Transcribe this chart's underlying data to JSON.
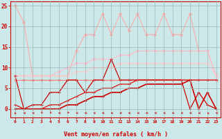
{
  "xlabel": "Vent moyen/en rafales ( km/h )",
  "x": [
    0,
    1,
    2,
    3,
    4,
    5,
    6,
    7,
    8,
    9,
    10,
    11,
    12,
    13,
    14,
    15,
    16,
    17,
    18,
    19,
    20,
    21,
    22,
    23
  ],
  "series": [
    {
      "name": "lightest_spiky",
      "color": "#ffaaaa",
      "lw": 0.8,
      "marker": "D",
      "ms": 2.0,
      "y": [
        25,
        21,
        8,
        8,
        8,
        8,
        8,
        14,
        18,
        18,
        23,
        18,
        23,
        19,
        23,
        18,
        18,
        23,
        18,
        18,
        23,
        14,
        14,
        8
      ]
    },
    {
      "name": "light_upper_slope",
      "color": "#ffbbcc",
      "lw": 0.8,
      "marker": "D",
      "ms": 2.0,
      "y": [
        8,
        8,
        8,
        8,
        8,
        9,
        10,
        11,
        11,
        12,
        12,
        12,
        13,
        13,
        14,
        14,
        14,
        14,
        14,
        14,
        14,
        14,
        14,
        8
      ]
    },
    {
      "name": "light_medium_slope",
      "color": "#ffcccc",
      "lw": 0.8,
      "marker": "D",
      "ms": 2.0,
      "y": [
        8,
        8,
        8,
        8,
        8,
        8,
        8,
        9,
        9,
        10,
        10,
        10,
        11,
        11,
        11,
        11,
        11,
        11,
        11,
        11,
        11,
        11,
        11,
        8
      ]
    },
    {
      "name": "medium_flat",
      "color": "#ff7777",
      "lw": 0.8,
      "marker": "s",
      "ms": 1.8,
      "y": [
        7,
        7,
        7,
        7,
        7,
        7,
        7,
        7,
        7,
        7,
        7,
        7,
        7,
        7,
        7,
        7,
        7,
        7,
        7,
        7,
        7,
        7,
        7,
        7
      ]
    },
    {
      "name": "dark_spiky",
      "color": "#cc0000",
      "lw": 0.9,
      "marker": "+",
      "ms": 3.5,
      "y": [
        8,
        0,
        1,
        1,
        4,
        4,
        7,
        7,
        4,
        7,
        7,
        12,
        7,
        7,
        7,
        7,
        7,
        7,
        7,
        7,
        0,
        4,
        1,
        0
      ]
    },
    {
      "name": "dark_slope1",
      "color": "#dd1111",
      "lw": 0.9,
      "marker": "+",
      "ms": 3.0,
      "y": [
        1,
        0,
        0,
        0,
        1,
        1,
        2,
        3,
        4,
        4,
        5,
        5,
        6,
        6,
        7,
        7,
        7,
        7,
        7,
        7,
        7,
        7,
        7,
        7
      ]
    },
    {
      "name": "dark_slope2",
      "color": "#cc0000",
      "lw": 1.2,
      "marker": "+",
      "ms": 2.5,
      "y": [
        0,
        0,
        0,
        0,
        0,
        0,
        1,
        1,
        2,
        3,
        3,
        4,
        4,
        5,
        5,
        6,
        6,
        6,
        6,
        6,
        7,
        0,
        4,
        0
      ]
    }
  ],
  "ylim": [
    -2,
    26
  ],
  "yticks": [
    0,
    5,
    10,
    15,
    20,
    25
  ],
  "xlim": [
    -0.5,
    23.5
  ],
  "bg_color": "#cce8e8",
  "grid_color": "#99bbbb",
  "axis_color": "#cc0000",
  "tick_color": "#cc0000",
  "label_color": "#cc0000",
  "arrow_angles_deg": [
    225,
    270,
    270,
    285,
    285,
    270,
    280,
    270,
    270,
    270,
    270,
    270,
    270,
    270,
    270,
    270,
    270,
    270,
    270,
    270,
    270,
    270,
    265,
    270
  ]
}
